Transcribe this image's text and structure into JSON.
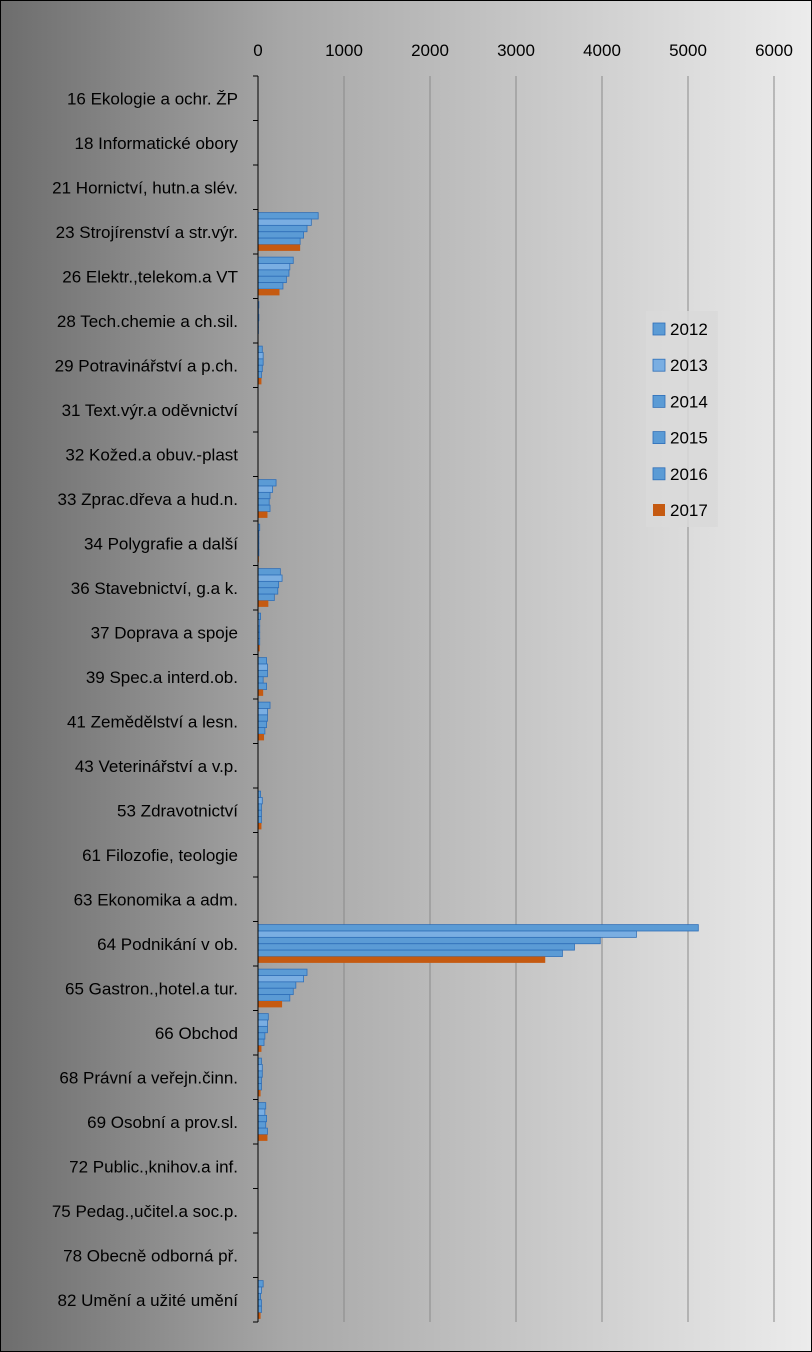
{
  "chart_data": {
    "type": "bar",
    "orientation": "horizontal",
    "title": "",
    "xlabel": "",
    "ylabel": "",
    "xlim": [
      0,
      6000
    ],
    "xticks": [
      0,
      1000,
      2000,
      3000,
      4000,
      5000,
      6000
    ],
    "x_axis_position": "top",
    "grid": true,
    "legend_position": "right",
    "categories": [
      "16 Ekologie a ochr. ŽP",
      "18 Informatické obory",
      "21 Hornictví, hutn.a slév.",
      "23 Strojírenství a str.výr.",
      "26 Elektr.,telekom.a VT",
      "28 Tech.chemie a ch.sil.",
      "29 Potravinářství a p.ch.",
      "31 Text.výr.a oděvnictví",
      "32 Kožed.a obuv.-plast",
      "33 Zprac.dřeva a hud.n.",
      "34 Polygrafie a další",
      "36 Stavebnictví, g.a k.",
      "37 Doprava a spoje",
      "39 Spec.a interd.ob.",
      "41 Zemědělství a lesn.",
      "43 Veterinářství a v.p.",
      "53 Zdravotnictví",
      "61 Filozofie, teologie",
      "63 Ekonomika a adm.",
      "64 Podnikání v ob.",
      "65 Gastron.,hotel.a tur.",
      "66 Obchod",
      "68 Právní a veřejn.činn.",
      "69 Osobní a prov.sl.",
      "72 Public.,knihov.a inf.",
      "75 Pedag.,učitel.a soc.p.",
      "78 Obecně odborná př.",
      "82 Umění a užité umění"
    ],
    "series": [
      {
        "name": "2012",
        "color": "#5b9bd5",
        "values": [
          0,
          0,
          0,
          700,
          410,
          10,
          50,
          0,
          0,
          210,
          20,
          260,
          30,
          100,
          140,
          0,
          30,
          0,
          0,
          5120,
          570,
          120,
          40,
          90,
          0,
          0,
          0,
          60
        ]
      },
      {
        "name": "2013",
        "color": "#7aaee2",
        "values": [
          0,
          0,
          0,
          620,
          370,
          5,
          60,
          0,
          0,
          170,
          10,
          280,
          20,
          110,
          110,
          0,
          50,
          0,
          0,
          4400,
          530,
          110,
          50,
          80,
          0,
          0,
          0,
          40
        ]
      },
      {
        "name": "2014",
        "color": "#5b9bd5",
        "values": [
          0,
          0,
          0,
          570,
          360,
          10,
          60,
          0,
          0,
          140,
          10,
          240,
          20,
          110,
          110,
          0,
          40,
          0,
          0,
          3980,
          440,
          110,
          50,
          100,
          0,
          0,
          0,
          30
        ]
      },
      {
        "name": "2015",
        "color": "#5b9bd5",
        "values": [
          0,
          0,
          0,
          530,
          330,
          5,
          50,
          0,
          0,
          130,
          10,
          230,
          20,
          60,
          100,
          0,
          40,
          0,
          0,
          3680,
          410,
          80,
          40,
          90,
          0,
          0,
          0,
          40
        ]
      },
      {
        "name": "2016",
        "color": "#5b9bd5",
        "values": [
          0,
          0,
          0,
          490,
          290,
          5,
          40,
          0,
          0,
          140,
          10,
          190,
          20,
          100,
          80,
          0,
          40,
          0,
          0,
          3540,
          370,
          70,
          40,
          110,
          0,
          0,
          0,
          40
        ]
      },
      {
        "name": "2017",
        "color": "#c55a11",
        "values": [
          0,
          0,
          0,
          490,
          250,
          5,
          40,
          0,
          0,
          110,
          10,
          120,
          20,
          60,
          70,
          0,
          40,
          0,
          0,
          3340,
          280,
          40,
          30,
          110,
          0,
          0,
          0,
          30
        ]
      }
    ]
  }
}
